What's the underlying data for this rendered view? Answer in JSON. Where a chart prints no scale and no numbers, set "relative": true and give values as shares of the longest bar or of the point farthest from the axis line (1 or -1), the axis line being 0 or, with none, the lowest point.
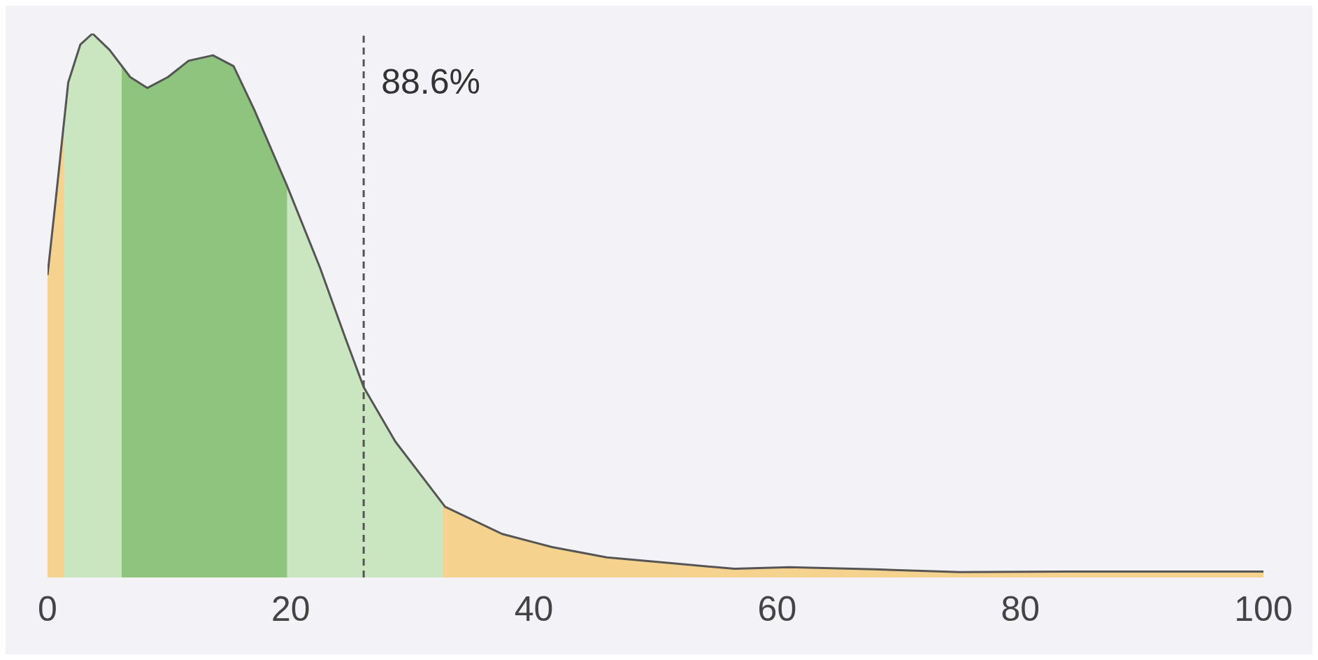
{
  "chart_data": {
    "type": "area",
    "relative": true,
    "x": [
      0,
      0.7,
      1.7,
      2.7,
      3.7,
      5.1,
      6.8,
      8.2,
      9.9,
      11.6,
      13.6,
      15.3,
      17,
      19.7,
      22.4,
      24.5,
      26,
      28.6,
      32.7,
      37.4,
      41.5,
      46,
      51,
      56.5,
      61,
      68,
      75,
      85,
      100
    ],
    "series": [
      {
        "color": "#555555",
        "values": [
          0.556,
          0.7,
          0.91,
          0.98,
          1,
          0.97,
          0.92,
          0.9,
          0.92,
          0.95,
          0.96,
          0.94,
          0.86,
          0.72,
          0.57,
          0.44,
          0.35,
          0.25,
          0.13,
          0.08,
          0.056,
          0.037,
          0.027,
          0.016,
          0.019,
          0.015,
          0.01,
          0.011,
          0.011
        ]
      }
    ],
    "xlim": [
      0,
      100
    ],
    "xticks": [
      0,
      20,
      40,
      60,
      80,
      100
    ],
    "bands": [
      {
        "axis": "x",
        "from": 0,
        "to": 1.4,
        "color": "#f5d38e"
      },
      {
        "axis": "x",
        "from": 1.4,
        "to": 6.1,
        "color": "#c9e6c0"
      },
      {
        "axis": "x",
        "from": 6.1,
        "to": 19.7,
        "color": "#8fc47e"
      },
      {
        "axis": "x",
        "from": 19.7,
        "to": 32.5,
        "color": "#c9e6c0"
      },
      {
        "axis": "x",
        "from": 32.5,
        "to": 100,
        "color": "#f5d38e"
      }
    ],
    "ref_lines": [
      {
        "axis": "x",
        "value": 26,
        "line_style": "dashed",
        "color": "#555555"
      }
    ],
    "annotations": [
      "88.6%"
    ]
  }
}
